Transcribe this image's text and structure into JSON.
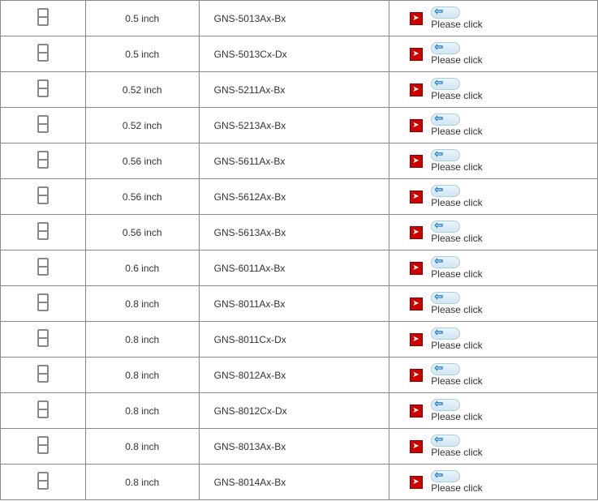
{
  "click_label": "Please click",
  "rows": [
    {
      "size": "0.5 inch",
      "model": "GNS-5013Ax-Bx"
    },
    {
      "size": "0.5 inch",
      "model": "GNS-5013Cx-Dx"
    },
    {
      "size": "0.52 inch",
      "model": "GNS-5211Ax-Bx"
    },
    {
      "size": "0.52 inch",
      "model": "GNS-5213Ax-Bx"
    },
    {
      "size": "0.56 inch",
      "model": "GNS-5611Ax-Bx"
    },
    {
      "size": "0.56 inch",
      "model": "GNS-5612Ax-Bx"
    },
    {
      "size": "0.56 inch",
      "model": "GNS-5613Ax-Bx"
    },
    {
      "size": "0.6 inch",
      "model": "GNS-6011Ax-Bx"
    },
    {
      "size": "0.8 inch",
      "model": "GNS-8011Ax-Bx"
    },
    {
      "size": "0.8 inch",
      "model": "GNS-8011Cx-Dx"
    },
    {
      "size": "0.8 inch",
      "model": "GNS-8012Ax-Bx"
    },
    {
      "size": "0.8 inch",
      "model": "GNS-8012Cx-Dx"
    },
    {
      "size": "0.8 inch",
      "model": "GNS-8013Ax-Bx"
    },
    {
      "size": "0.8 inch",
      "model": "GNS-8014Ax-Bx"
    }
  ]
}
